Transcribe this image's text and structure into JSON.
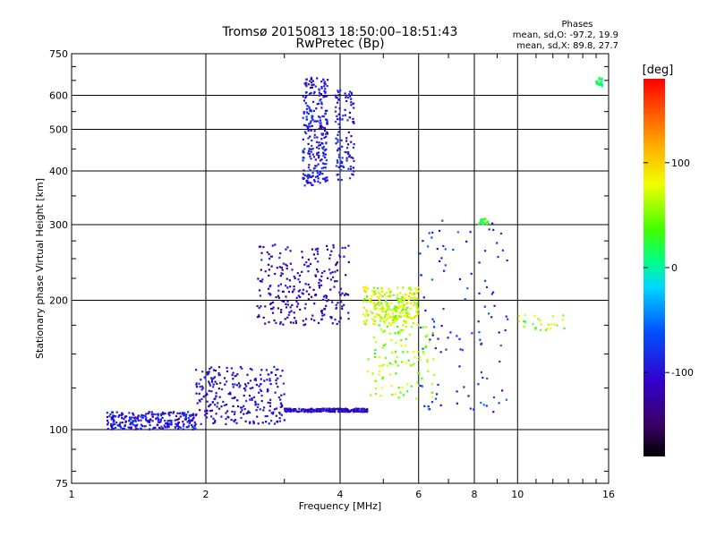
{
  "chart_data": {
    "type": "scatter",
    "title": "Tromsø 20150813 18:50:00–18:51:43",
    "subtitle": "RwPretec (Bp)",
    "stats_heading": "Phases",
    "stats_o": "mean, sd,O: -97.2, 19.9",
    "stats_x": "mean, sd,X:  89.8, 27.7",
    "xlabel": "Frequency [MHz]",
    "ylabel": "Stationary phase Virtual Height [km]",
    "x_scale": "log",
    "y_scale": "log",
    "xlim": [
      1,
      16
    ],
    "ylim": [
      75,
      750
    ],
    "x_ticks": [
      1,
      2,
      4,
      6,
      8,
      10,
      16
    ],
    "x_tick_labels": [
      "1",
      "2",
      "4",
      "6",
      "8",
      "10",
      "16"
    ],
    "y_ticks": [
      75,
      100,
      200,
      300,
      400,
      500,
      600,
      750
    ],
    "y_tick_labels": [
      "75",
      "100",
      "200",
      "300",
      "400",
      "500",
      "600",
      "750"
    ],
    "grid": true,
    "colorbar": {
      "label": "[deg]",
      "range": [
        -180,
        180
      ],
      "ticks": [
        100,
        0,
        -100
      ],
      "tick_labels": [
        "100",
        "0",
        "-100"
      ]
    },
    "point_groups": [
      {
        "x_range": [
          1.2,
          1.9
        ],
        "y_range": [
          100,
          110
        ],
        "phase": -95,
        "density": "high"
      },
      {
        "x_range": [
          1.9,
          3.0
        ],
        "y_range": [
          103,
          140
        ],
        "phase": -100,
        "density": "high"
      },
      {
        "x_range": [
          3.0,
          4.6
        ],
        "y_range": [
          110,
          112
        ],
        "phase": -105,
        "density": "high"
      },
      {
        "x_range": [
          3.3,
          3.75
        ],
        "y_range": [
          370,
          660
        ],
        "phase": -95,
        "density": "high"
      },
      {
        "x_range": [
          3.9,
          4.3
        ],
        "y_range": [
          380,
          620
        ],
        "phase": -90,
        "density": "medium"
      },
      {
        "x_range": [
          2.6,
          4.2
        ],
        "y_range": [
          175,
          270
        ],
        "phase": -110,
        "density": "high"
      },
      {
        "x_range": [
          4.5,
          6.0
        ],
        "y_range": [
          175,
          215
        ],
        "phase": 70,
        "density": "high"
      },
      {
        "x_range": [
          4.6,
          6.5
        ],
        "y_range": [
          118,
          175
        ],
        "phase": 55,
        "density": "medium"
      },
      {
        "x_range": [
          6.0,
          9.5
        ],
        "y_range": [
          110,
          310
        ],
        "phase": -80,
        "density": "medium"
      },
      {
        "x_range": [
          10.0,
          13.0
        ],
        "y_range": [
          170,
          185
        ],
        "phase": 60,
        "density": "low"
      },
      {
        "x_range": [
          8.2,
          8.6
        ],
        "y_range": [
          300,
          310
        ],
        "phase": 20,
        "density": "low"
      },
      {
        "x_range": [
          15.0,
          15.5
        ],
        "y_range": [
          630,
          660
        ],
        "phase": 10,
        "density": "low"
      }
    ]
  }
}
